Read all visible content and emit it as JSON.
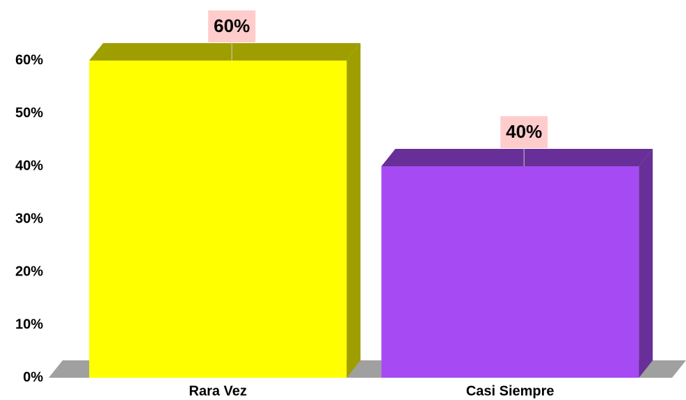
{
  "chart_data": {
    "type": "bar3d",
    "categories": [
      "Rara Vez",
      "Casi Siempre"
    ],
    "values": [
      60,
      40
    ],
    "value_labels": [
      "60%",
      "40%"
    ],
    "colors": [
      "#ffff00",
      "#a64bf4"
    ],
    "ylim": [
      0,
      60
    ],
    "yticks": [
      {
        "value": 0,
        "label": "0%"
      },
      {
        "value": 10,
        "label": "10%"
      },
      {
        "value": 20,
        "label": "20%"
      },
      {
        "value": 30,
        "label": "30%"
      },
      {
        "value": 40,
        "label": "40%"
      },
      {
        "value": 50,
        "label": "50%"
      },
      {
        "value": 60,
        "label": "60%"
      }
    ]
  }
}
